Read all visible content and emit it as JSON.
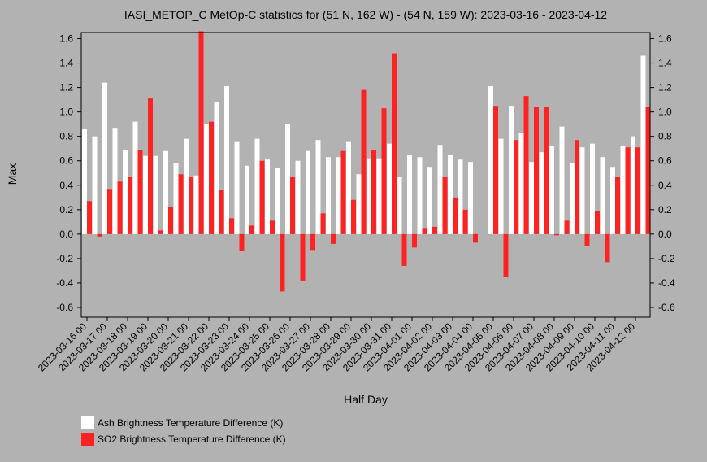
{
  "chart_data": {
    "type": "bar",
    "title": "IASI_METOP_C MetOp-C statistics for (51 N, 162 W) - (54 N, 159 W): 2023-03-16 - 2023-04-12",
    "xlabel": "Half Day",
    "ylabel": "Max",
    "ylim": [
      -0.68,
      1.65
    ],
    "yticks": [
      -0.6,
      -0.4,
      -0.2,
      0.0,
      0.2,
      0.4,
      0.6,
      0.8,
      1.0,
      1.2,
      1.4,
      1.6
    ],
    "ytick_labels": [
      "-0.6",
      "-0.4",
      "-0.2",
      "0.0",
      "0.2",
      "0.4",
      "0.6",
      "0.8",
      "1.0",
      "1.2",
      "1.4",
      "1.6"
    ],
    "x_labels": [
      "2023-03-16 00",
      "2023-03-17 00",
      "2023-03-18 00",
      "2023-03-19 00",
      "2023-03-20 00",
      "2023-03-21 00",
      "2023-03-22 00",
      "2023-03-23 00",
      "2023-03-24 00",
      "2023-03-25 00",
      "2023-03-26 00",
      "2023-03-27 00",
      "2023-03-28 00",
      "2023-03-29 00",
      "2023-03-30 00",
      "2023-03-31 00",
      "2023-04-01 00",
      "2023-04-02 00",
      "2023-04-03 00",
      "2023-04-04 00",
      "2023-04-05 00",
      "2023-04-06 00",
      "2023-04-07 00",
      "2023-04-08 00",
      "2023-04-09 00",
      "2023-04-10 00",
      "2023-04-11 00",
      "2023-04-12 00"
    ],
    "grid": false,
    "legend_position": "bottom-left",
    "series": [
      {
        "name": "Ash Brightness Temperature Difference (K)",
        "color": "#ffffff",
        "values": [
          0.86,
          0.8,
          1.24,
          0.87,
          0.69,
          0.92,
          0.64,
          0.64,
          0.68,
          0.58,
          0.78,
          0.48,
          0.9,
          1.08,
          1.21,
          0.76,
          0.56,
          0.78,
          0.61,
          0.54,
          0.9,
          0.6,
          0.68,
          0.77,
          0.63,
          0.63,
          0.76,
          0.49,
          0.62,
          0.62,
          0.74,
          0.47,
          0.65,
          0.63,
          0.55,
          0.73,
          0.65,
          0.61,
          0.59,
          null,
          1.21,
          0.78,
          1.05,
          0.83,
          0.59,
          0.67,
          0.72,
          0.88,
          0.58,
          0.71,
          0.74,
          0.63,
          0.55,
          0.72,
          0.8,
          1.46
        ]
      },
      {
        "name": "SO2 Brightness Temperature Difference (K)",
        "color": "#ff2222",
        "values": [
          0.27,
          -0.02,
          0.37,
          0.43,
          0.47,
          0.69,
          1.11,
          0.03,
          0.22,
          0.49,
          0.47,
          1.66,
          0.92,
          0.36,
          0.13,
          -0.14,
          0.07,
          0.6,
          0.11,
          -0.47,
          0.47,
          -0.38,
          -0.13,
          0.17,
          -0.08,
          0.68,
          0.28,
          1.18,
          0.69,
          1.03,
          1.48,
          -0.26,
          -0.11,
          0.05,
          0.06,
          0.47,
          0.3,
          0.2,
          -0.07,
          null,
          1.05,
          -0.35,
          0.77,
          1.13,
          1.04,
          1.04,
          -0.01,
          0.11,
          0.77,
          -0.1,
          0.19,
          -0.23,
          0.47,
          0.71,
          0.71,
          1.04
        ]
      }
    ]
  }
}
